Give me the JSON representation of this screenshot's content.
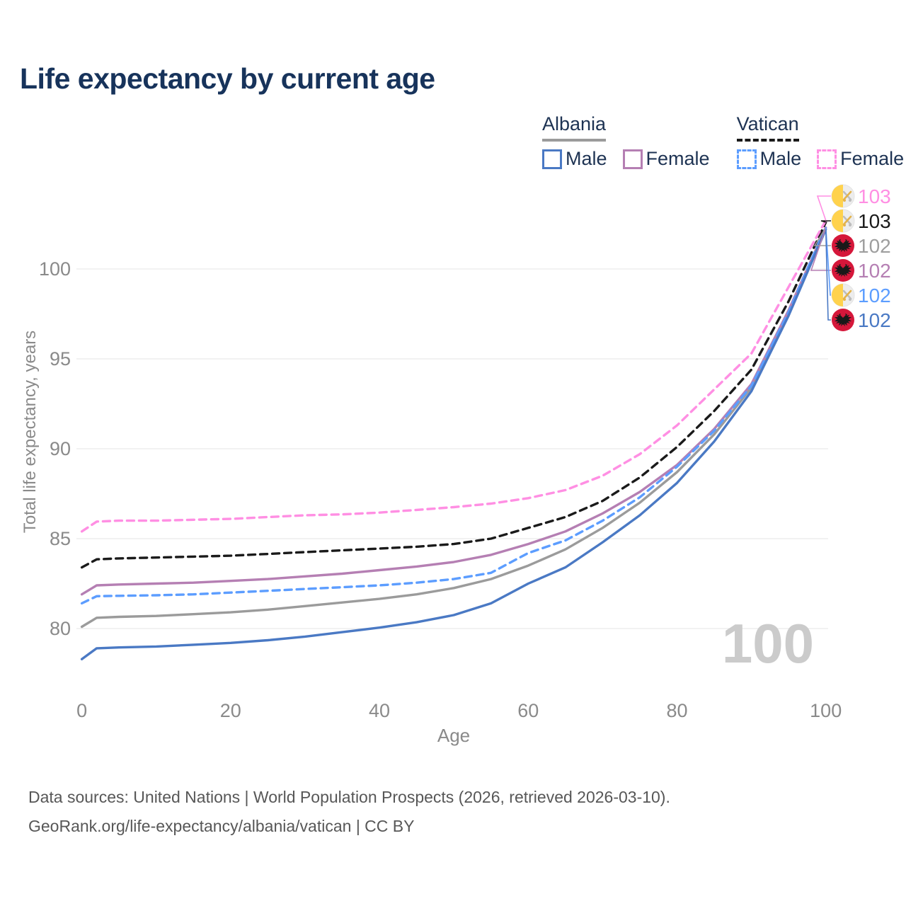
{
  "title": "Life expectancy by current age",
  "legend": {
    "groups": [
      {
        "name": "Albania",
        "line_style": "solid",
        "underline_color": "#9b9b9b",
        "items": [
          {
            "label": "Male",
            "color": "#4a79c4",
            "dashed": false
          },
          {
            "label": "Female",
            "color": "#b57fb3",
            "dashed": false
          }
        ]
      },
      {
        "name": "Vatican",
        "line_style": "dashed",
        "underline_color": "#1a1a1a",
        "items": [
          {
            "label": "Male",
            "color": "#5c9dff",
            "dashed": true
          },
          {
            "label": "Female",
            "color": "#ff8fe3",
            "dashed": true
          }
        ]
      }
    ]
  },
  "chart_data": {
    "type": "line",
    "title": "Life expectancy by current age",
    "xlabel": "Age",
    "ylabel": "Total life expectancy, years",
    "xlim": [
      0,
      100
    ],
    "ylim": [
      77.5,
      103.5
    ],
    "x_ticks": [
      0,
      20,
      40,
      60,
      80,
      100
    ],
    "y_ticks": [
      80,
      85,
      90,
      95,
      100
    ],
    "grid": "horizontal",
    "watermark": "100",
    "x": [
      0,
      2,
      5,
      10,
      15,
      20,
      25,
      30,
      35,
      40,
      45,
      50,
      55,
      60,
      65,
      70,
      75,
      80,
      85,
      90,
      95,
      100
    ],
    "series": [
      {
        "name": "Albania Both",
        "country": "albania",
        "sex": "both",
        "color": "#9b9b9b",
        "dashed": false,
        "values": [
          80.1,
          80.6,
          80.65,
          80.7,
          80.8,
          80.9,
          81.05,
          81.25,
          81.45,
          81.65,
          81.9,
          82.25,
          82.75,
          83.5,
          84.4,
          85.6,
          87.0,
          88.7,
          90.8,
          93.4,
          97.5,
          102.3
        ],
        "end_label": {
          "text": "102",
          "color": "#9e9e9e",
          "flag": "albania",
          "row": 2
        }
      },
      {
        "name": "Albania Female",
        "country": "albania",
        "sex": "female",
        "color": "#b57fb3",
        "dashed": false,
        "values": [
          81.9,
          82.4,
          82.45,
          82.5,
          82.55,
          82.65,
          82.75,
          82.9,
          83.05,
          83.25,
          83.45,
          83.7,
          84.1,
          84.7,
          85.4,
          86.4,
          87.6,
          89.1,
          91.1,
          93.6,
          97.7,
          102.3
        ],
        "end_label": {
          "text": "102",
          "color": "#b57fb3",
          "flag": "albania",
          "row": 3
        }
      },
      {
        "name": "Vatican Male",
        "country": "vatican",
        "sex": "male",
        "color": "#5c9dff",
        "dashed": true,
        "values": [
          81.4,
          81.8,
          81.82,
          81.85,
          81.9,
          82.0,
          82.1,
          82.2,
          82.3,
          82.4,
          82.55,
          82.75,
          83.1,
          84.2,
          84.9,
          86.0,
          87.3,
          89.0,
          91.0,
          93.5,
          97.6,
          102.35
        ],
        "end_label": {
          "text": "102",
          "color": "#5c9dff",
          "flag": "vatican",
          "row": 4
        }
      },
      {
        "name": "Albania Male",
        "country": "albania",
        "sex": "male",
        "color": "#4a79c4",
        "dashed": false,
        "values": [
          78.3,
          78.9,
          78.95,
          79.0,
          79.1,
          79.2,
          79.35,
          79.55,
          79.8,
          80.05,
          80.35,
          80.75,
          81.4,
          82.5,
          83.4,
          84.8,
          86.3,
          88.1,
          90.4,
          93.2,
          97.4,
          102.2
        ],
        "end_label": {
          "text": "102",
          "color": "#4a79c4",
          "flag": "albania",
          "row": 5
        }
      },
      {
        "name": "Vatican Both",
        "country": "vatican",
        "sex": "both",
        "color": "#1a1a1a",
        "dashed": true,
        "values": [
          83.4,
          83.85,
          83.9,
          83.95,
          84.0,
          84.05,
          84.15,
          84.25,
          84.35,
          84.45,
          84.55,
          84.7,
          85.0,
          85.6,
          86.2,
          87.1,
          88.4,
          90.1,
          92.1,
          94.4,
          98.2,
          102.6
        ],
        "end_label": {
          "text": "103",
          "color": "#1a1a1a",
          "flag": "vatican",
          "row": 1
        }
      },
      {
        "name": "Vatican Female",
        "country": "vatican",
        "sex": "female",
        "color": "#ff8fe3",
        "dashed": true,
        "values": [
          85.4,
          85.95,
          86.0,
          86.0,
          86.05,
          86.1,
          86.2,
          86.3,
          86.35,
          86.45,
          86.6,
          86.75,
          86.95,
          87.25,
          87.7,
          88.5,
          89.7,
          91.3,
          93.3,
          95.3,
          99.0,
          102.7
        ],
        "end_label": {
          "text": "103",
          "color": "#ff8fe3",
          "flag": "vatican",
          "row": 0
        }
      }
    ],
    "flag_colors": {
      "albania_red": "#d5173a",
      "albania_eagle": "#191919",
      "vatican_yellow": "#ffd24d",
      "vatican_white": "#ededed"
    }
  },
  "footer": {
    "line1": "Data sources: United Nations | World Population Prospects (2026, retrieved 2026-03-10).",
    "line2": "GeoRank.org/life-expectancy/albania/vatican | CC BY"
  }
}
